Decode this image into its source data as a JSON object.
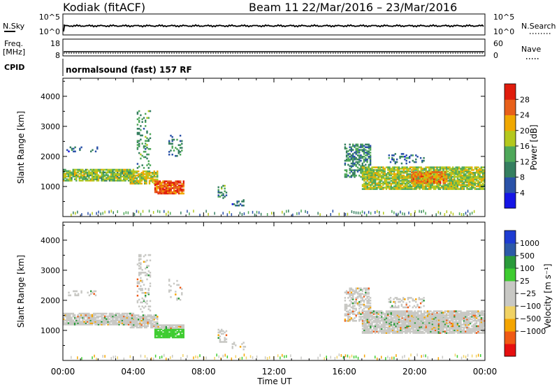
{
  "header": {
    "station": "Kodiak (fitACF)",
    "beam": "Beam 11",
    "date_range": "22/Mar/2016 – 23/Mar/2016"
  },
  "summary_panels": {
    "nsky_label": "N.Sky",
    "nsky_ticks": [
      "10^5",
      "10^0"
    ],
    "nsearch_label": "N.Search",
    "nsearch_ticks": [
      "10^5",
      "10^0"
    ],
    "freq_label_line1": "Freq.",
    "freq_label_line2": "[MHz]",
    "freq_ticks": [
      "18",
      "8"
    ],
    "nave_label": "Nave",
    "nave_ticks": [
      "60",
      "0"
    ],
    "cpid_label": "CPID",
    "cpid_text": "normalsound (fast) 157 RF"
  },
  "colors": {
    "power_scale": [
      "#1515e6",
      "#2a52a8",
      "#357f60",
      "#4fa85a",
      "#b4c81e",
      "#f0a800",
      "#e8601a",
      "#e01c0c"
    ],
    "velocity_scale": [
      "#e60f0f",
      "#f05a14",
      "#f5a500",
      "#f0d264",
      "#c8c8c4",
      "#c8c8c4",
      "#3ecc30",
      "#2a9a3a",
      "#2d5aa8",
      "#1e3cd2"
    ]
  },
  "chart_data": [
    {
      "type": "heatmap",
      "name": "power-panel",
      "ylabel": "Slant Range [km]",
      "yticks": [
        1000,
        2000,
        3000,
        4000
      ],
      "ylim": [
        0,
        4600
      ],
      "xlim": [
        0,
        24
      ],
      "colorbar_label": "Power [dB]",
      "colorbar_ticks": [
        "4",
        "8",
        "12",
        "16",
        "20",
        "24",
        "28"
      ],
      "colorbar_range": [
        0,
        32
      ]
    },
    {
      "type": "heatmap",
      "name": "velocity-panel",
      "ylabel": "Slant Range [km]",
      "yticks": [
        1000,
        2000,
        3000,
        4000
      ],
      "ylim": [
        0,
        4600
      ],
      "xlim": [
        0,
        24
      ],
      "xlabel": "Time UT",
      "xticks": [
        "00:00",
        "04:00",
        "08:00",
        "12:00",
        "16:00",
        "20:00",
        "00:00"
      ],
      "colorbar_label": "Velocity [m s⁻¹]",
      "colorbar_ticks": [
        "1000",
        "500",
        "100",
        "25",
        "−25",
        "−100",
        "−500",
        "−1000"
      ]
    }
  ]
}
